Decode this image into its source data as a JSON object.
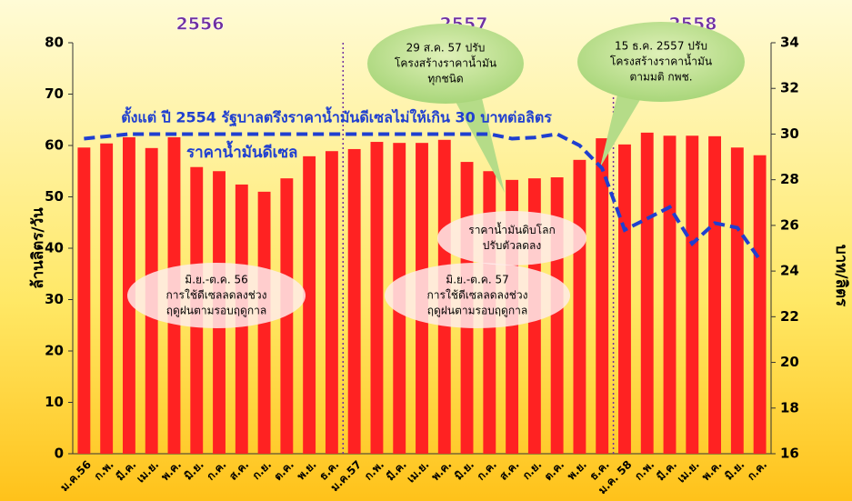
{
  "chart_data": {
    "type": "bar_line",
    "periods": [
      "2556",
      "2557",
      "2558"
    ],
    "ylabel": "ล้านลิตร/วัน",
    "y2label": "บาท/ลิตร",
    "categories": [
      "ม.ค.56",
      "ก.พ.",
      "มี.ค.",
      "เม.ย.",
      "พ.ค.",
      "มิ.ย.",
      "ก.ค.",
      "ส.ค.",
      "ก.ย.",
      "ต.ค.",
      "พ.ย.",
      "ธ.ค.",
      "ม.ค.57",
      "ก.พ.",
      "มี.ค.",
      "เม.ย.",
      "พ.ค.",
      "มิ.ย.",
      "ก.ค.",
      "ส.ค.",
      "ก.ย.",
      "ต.ค.",
      "พ.ย.",
      "ธ.ค.",
      "ม.ค. 58",
      "ก.พ.",
      "มี.ค.",
      "เม.ย.",
      "พ.ค.",
      "มิ.ย.",
      "ก.ค."
    ],
    "series": [
      {
        "color": "#ff2222",
        "values": [
          59.6,
          60.4,
          61.6,
          59.5,
          61.6,
          55.8,
          55.0,
          52.4,
          51.0,
          53.6,
          57.9,
          58.9,
          59.3,
          60.7,
          60.5,
          60.5,
          61.1,
          56.8,
          55.0,
          53.3,
          53.6,
          53.8,
          57.2,
          61.4,
          60.2,
          62.5,
          61.9,
          61.9,
          61.8,
          59.6,
          58.1
        ]
      },
      {
        "name": "ราคาน้ำมันดีเซล",
        "color": "#1f3fd0",
        "axis": "y2",
        "values": [
          29.8,
          29.9,
          30,
          30,
          30,
          30,
          30,
          30,
          30,
          30,
          30,
          30,
          30,
          30,
          30,
          30,
          30,
          30,
          30,
          29.8,
          29.85,
          30,
          29.5,
          28.5,
          25.8,
          26.3,
          26.8,
          25.2,
          26.1,
          25.9,
          24.5
        ]
      }
    ],
    "ylim": [
      0,
      80
    ],
    "yticks": [
      0,
      10,
      20,
      30,
      40,
      50,
      60,
      70,
      80
    ],
    "y2lim": [
      16,
      34
    ],
    "y2ticks": [
      16,
      18,
      20,
      22,
      24,
      26,
      28,
      30,
      32,
      34
    ],
    "headline": "ตั้งแต่ ปี 2554 รัฐบาลตรึงราคาน้ำมันดีเซลไม่ให้เกิน 30 บาทต่อลิตร",
    "annotations": [
      {
        "lines": [
          "29 ส.ค. 57 ปรับ",
          "โครงสร้างราคาน้ำมัน",
          "ทุกชนิด"
        ]
      },
      {
        "lines": [
          "15 ธ.ค. 2557 ปรับ",
          "โครงสร้างราคาน้ำมัน",
          "ตามมติ กพช."
        ]
      },
      {
        "lines": [
          "ราคาน้ำมันดิบโลก",
          "ปรับตัวลดลง"
        ]
      },
      {
        "lines": [
          "มิ.ย.-ต.ค. 56",
          "การใช้ดีเซลลดลงช่วง",
          "ฤดูฝนตามรอบฤดูกาล"
        ]
      },
      {
        "lines": [
          "มิ.ย.-ต.ค. 57",
          "การใช้ดีเซลลดลงช่วง",
          "ฤดูฝนตามรอบฤดูกาล"
        ]
      }
    ]
  }
}
